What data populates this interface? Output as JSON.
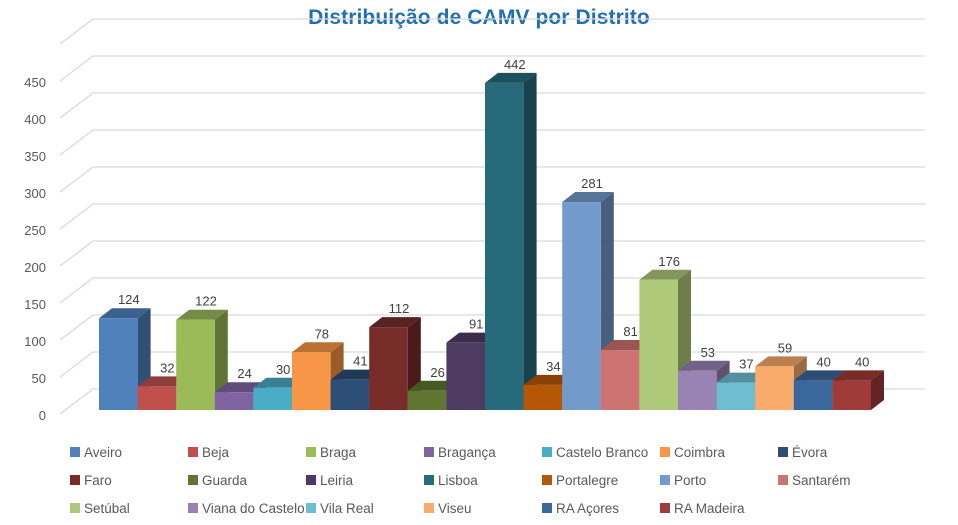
{
  "chart_data": {
    "type": "bar",
    "style": "3d-column",
    "title": "Distribuição de CAMV por Distrito",
    "xlabel": "",
    "ylabel": "",
    "ylim": [
      0,
      500
    ],
    "yticks": [
      0,
      50,
      100,
      150,
      200,
      250,
      300,
      350,
      400,
      450
    ],
    "grid": true,
    "legend_position": "bottom",
    "series": [
      {
        "name": "Aveiro",
        "value": 124,
        "color": "#4F81BD"
      },
      {
        "name": "Beja",
        "value": 32,
        "color": "#C0504D"
      },
      {
        "name": "Braga",
        "value": 122,
        "color": "#9BBB59"
      },
      {
        "name": "Bragança",
        "value": 24,
        "color": "#8064A2"
      },
      {
        "name": "Castelo Branco",
        "value": 30,
        "color": "#4BACC6"
      },
      {
        "name": "Coimbra",
        "value": 78,
        "color": "#F79646"
      },
      {
        "name": "Évora",
        "value": 41,
        "color": "#2C4D75"
      },
      {
        "name": "Faro",
        "value": 112,
        "color": "#772C2A"
      },
      {
        "name": "Guarda",
        "value": 26,
        "color": "#5F7530"
      },
      {
        "name": "Leiria",
        "value": 91,
        "color": "#4D3B62"
      },
      {
        "name": "Lisboa",
        "value": 442,
        "color": "#276A7C"
      },
      {
        "name": "Portalegre",
        "value": 34,
        "color": "#B65708"
      },
      {
        "name": "Porto",
        "value": 281,
        "color": "#729ACA"
      },
      {
        "name": "Santarém",
        "value": 81,
        "color": "#CD7371"
      },
      {
        "name": "Setúbal",
        "value": 176,
        "color": "#AFC97A"
      },
      {
        "name": "Viana do Castelo",
        "value": 53,
        "color": "#9983B5"
      },
      {
        "name": "Vila Real",
        "value": 37,
        "color": "#6FBDD1"
      },
      {
        "name": "Viseu",
        "value": 59,
        "color": "#F9AB6B"
      },
      {
        "name": "RA Açores",
        "value": 40,
        "color": "#3A679C"
      },
      {
        "name": "RA Madeira",
        "value": 40,
        "color": "#9F3B38"
      }
    ]
  }
}
